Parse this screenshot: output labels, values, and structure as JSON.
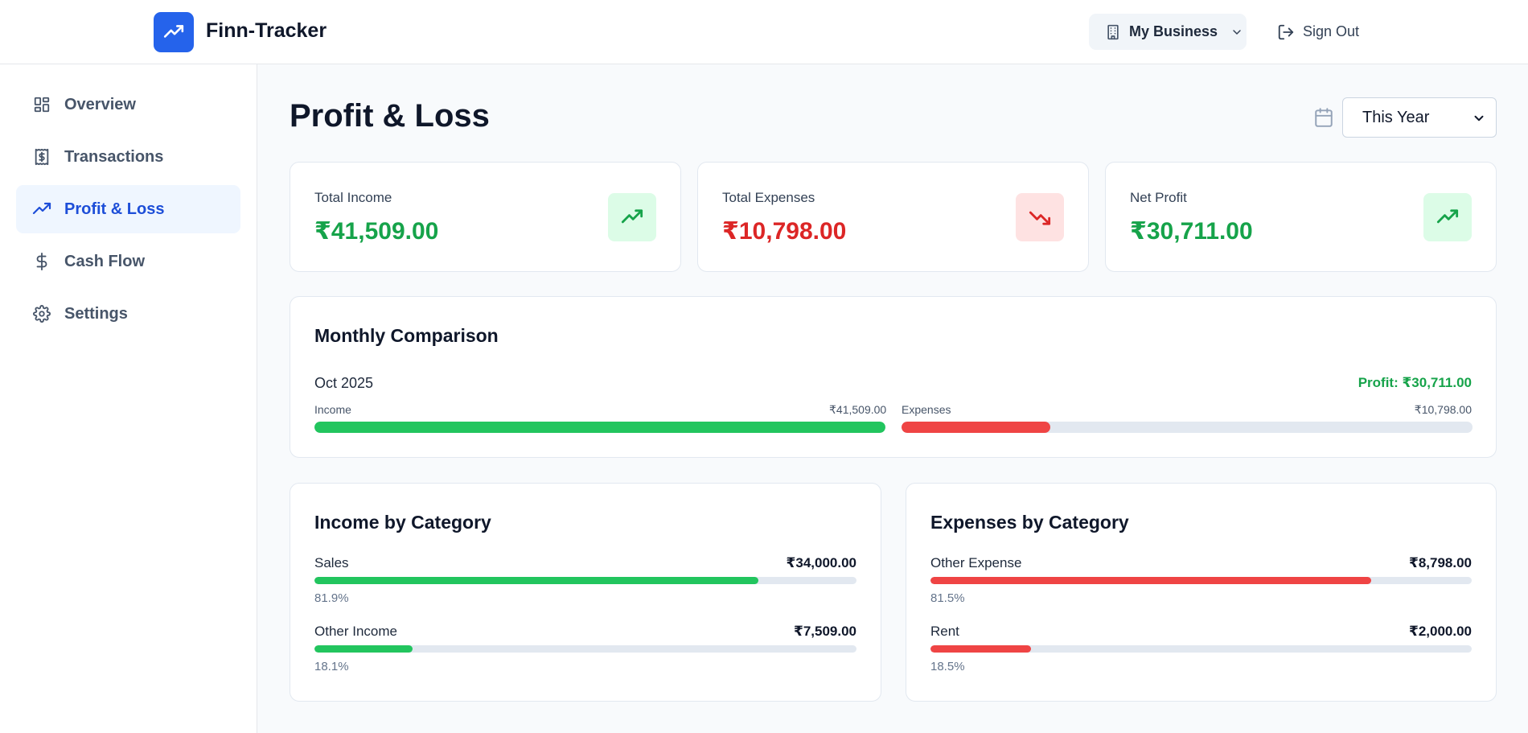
{
  "header": {
    "app_title": "Finn-Tracker",
    "business_label": "My Business",
    "sign_out_label": "Sign Out"
  },
  "sidebar": {
    "items": [
      {
        "label": "Overview",
        "icon": "dashboard-icon",
        "active": false
      },
      {
        "label": "Transactions",
        "icon": "receipt-icon",
        "active": false
      },
      {
        "label": "Profit & Loss",
        "icon": "trending-up-icon",
        "active": true
      },
      {
        "label": "Cash Flow",
        "icon": "dollar-icon",
        "active": false
      },
      {
        "label": "Settings",
        "icon": "gear-icon",
        "active": false
      }
    ]
  },
  "main": {
    "title": "Profit & Loss",
    "period": {
      "selected": "This Year"
    },
    "stats": [
      {
        "label": "Total Income",
        "value": "₹41,509.00",
        "color": "#16a34a",
        "icon": "trending-up-icon"
      },
      {
        "label": "Total Expenses",
        "value": "₹10,798.00",
        "color": "#dc2626",
        "icon": "trending-down-icon"
      },
      {
        "label": "Net Profit",
        "value": "₹30,711.00",
        "color": "#16a34a",
        "icon": "trending-up-icon"
      }
    ],
    "monthly": {
      "title": "Monthly Comparison",
      "month": "Oct 2025",
      "profit": "Profit: ₹30,711.00",
      "income_label": "Income",
      "income_amount": "₹41,509.00",
      "income_fraction": 1.0,
      "expenses_label": "Expenses",
      "expenses_amount": "₹10,798.00",
      "expenses_fraction": 0.26
    },
    "income_categories": {
      "title": "Income by Category",
      "items": [
        {
          "name": "Sales",
          "amount": "₹34,000.00",
          "percent": "81.9%",
          "fraction": 0.819
        },
        {
          "name": "Other Income",
          "amount": "₹7,509.00",
          "percent": "18.1%",
          "fraction": 0.181
        }
      ]
    },
    "expense_categories": {
      "title": "Expenses by Category",
      "items": [
        {
          "name": "Other Expense",
          "amount": "₹8,798.00",
          "percent": "81.5%",
          "fraction": 0.815
        },
        {
          "name": "Rent",
          "amount": "₹2,000.00",
          "percent": "18.5%",
          "fraction": 0.185
        }
      ]
    }
  },
  "colors": {
    "primary": "#2563eb",
    "income": "#22c55e",
    "expense": "#ef4444"
  }
}
